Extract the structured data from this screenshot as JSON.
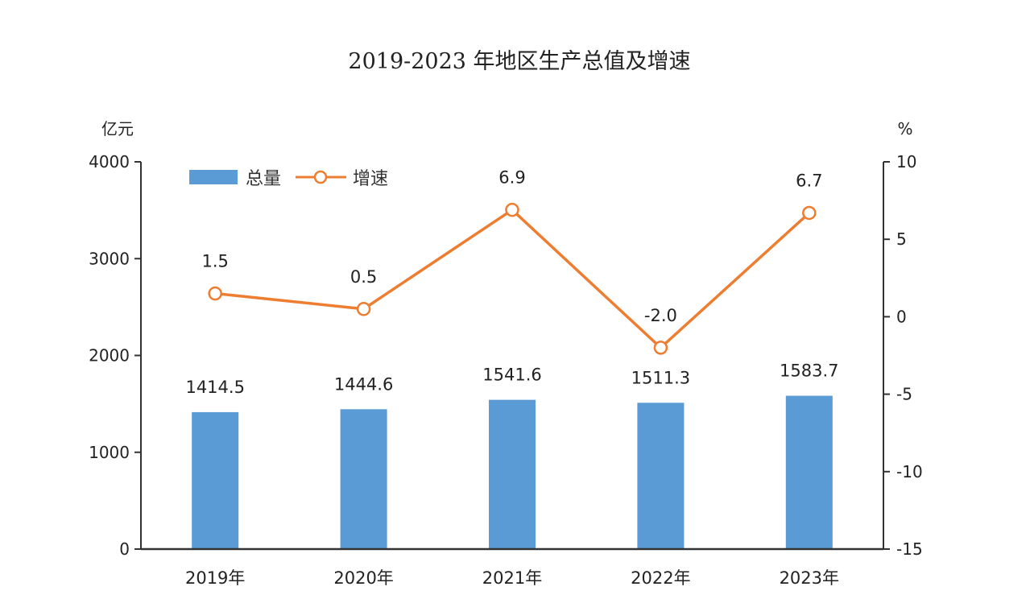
{
  "chart_data": {
    "type": "bar",
    "title": "2019-2023 年地区生产总值及增速",
    "categories": [
      "2019年",
      "2020年",
      "2021年",
      "2022年",
      "2023年"
    ],
    "y_left": {
      "unit": "亿元",
      "ylim": [
        0,
        4000
      ],
      "ticks": [
        0,
        1000,
        2000,
        3000,
        4000
      ]
    },
    "y_right": {
      "unit": "%",
      "ylim": [
        -15,
        10
      ],
      "ticks": [
        -15,
        -10,
        -5,
        0,
        5,
        10
      ]
    },
    "series": [
      {
        "name": "总量",
        "type": "bar",
        "axis": "left",
        "color": "#5b9bd5",
        "values": [
          1414.5,
          1444.6,
          1541.6,
          1511.3,
          1583.7
        ],
        "labels": [
          "1414.5",
          "1444.6",
          "1541.6",
          "1511.3",
          "1583.7"
        ]
      },
      {
        "name": "增速",
        "type": "line",
        "axis": "right",
        "color": "#ed7d31",
        "values": [
          1.5,
          0.5,
          6.9,
          -2.0,
          6.7
        ],
        "labels": [
          "1.5",
          "0.5",
          "6.9",
          "-2.0",
          "6.7"
        ]
      }
    ],
    "legend_position": "top-left",
    "grid": false
  }
}
